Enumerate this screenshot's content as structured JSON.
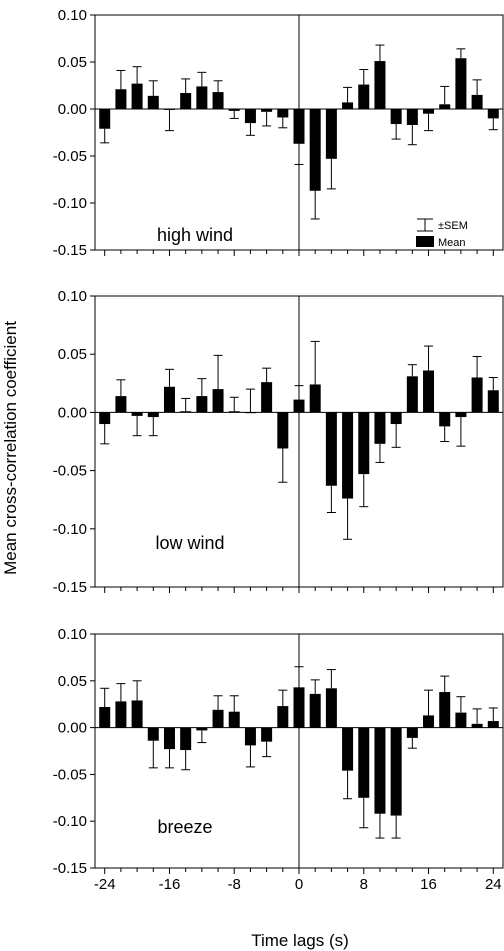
{
  "chart_data": {
    "type": "bar",
    "ylabel": "Mean cross-correlation coefficient",
    "xlabel": "Time lags (s)",
    "x": [
      -24,
      -22,
      -20,
      -18,
      -16,
      -14,
      -12,
      -10,
      -8,
      -6,
      -4,
      -2,
      0,
      2,
      4,
      6,
      8,
      10,
      12,
      14,
      16,
      18,
      20,
      22,
      24
    ],
    "xticks": [
      -24,
      -16,
      -8,
      0,
      8,
      16,
      24
    ],
    "xtick_labels": [
      "-24",
      "-16",
      "-8",
      "0",
      "8",
      "16",
      "24"
    ],
    "xlim": [
      -25.2,
      25.2
    ],
    "ylim": [
      -0.15,
      0.1
    ],
    "yticks": [
      0.1,
      0.05,
      0.0,
      -0.05,
      -0.1,
      -0.15
    ],
    "ytick_labels": [
      "0.10",
      "0.05",
      "0.00",
      "-0.05",
      "-0.10",
      "-0.15"
    ],
    "legend": {
      "placement": "right",
      "error_label": "±SEM",
      "mean_label": "Mean"
    },
    "panels": [
      {
        "label": "high wind",
        "values": [
          -0.021,
          0.021,
          0.027,
          0.014,
          -0.001,
          0.017,
          0.024,
          0.018,
          -0.002,
          -0.015,
          -0.003,
          -0.009,
          -0.037,
          -0.087,
          -0.053,
          0.007,
          0.026,
          0.051,
          -0.016,
          -0.017,
          -0.005,
          0.005,
          0.054,
          0.015,
          -0.01
        ],
        "errors": [
          0.015,
          0.02,
          0.018,
          0.016,
          0.022,
          0.015,
          0.015,
          0.012,
          0.008,
          0.013,
          0.015,
          0.011,
          0.022,
          0.03,
          0.032,
          0.016,
          0.016,
          0.017,
          0.016,
          0.021,
          0.018,
          0.019,
          0.01,
          0.016,
          0.012
        ]
      },
      {
        "label": "low wind",
        "values": [
          -0.01,
          0.014,
          -0.003,
          -0.004,
          0.022,
          0.001,
          0.014,
          0.02,
          0.001,
          0.0,
          0.026,
          -0.031,
          0.011,
          0.024,
          -0.063,
          -0.074,
          -0.053,
          -0.027,
          -0.01,
          0.031,
          0.036,
          -0.012,
          -0.004,
          0.03,
          0.019
        ],
        "errors": [
          0.017,
          0.014,
          0.017,
          0.016,
          0.015,
          0.011,
          0.015,
          0.029,
          0.012,
          0.02,
          0.012,
          0.029,
          0.012,
          0.037,
          0.023,
          0.035,
          0.028,
          0.016,
          0.02,
          0.01,
          0.021,
          0.013,
          0.025,
          0.018,
          0.011
        ]
      },
      {
        "label": "breeze",
        "values": [
          0.022,
          0.028,
          0.029,
          -0.014,
          -0.023,
          -0.024,
          -0.003,
          0.019,
          0.017,
          -0.019,
          -0.015,
          0.023,
          0.043,
          0.036,
          0.042,
          -0.046,
          -0.075,
          -0.092,
          -0.094,
          -0.011,
          0.013,
          0.038,
          0.016,
          0.004,
          0.007
        ],
        "errors": [
          0.02,
          0.019,
          0.021,
          0.029,
          0.02,
          0.021,
          0.013,
          0.015,
          0.017,
          0.023,
          0.016,
          0.017,
          0.022,
          0.015,
          0.02,
          0.03,
          0.032,
          0.026,
          0.024,
          0.011,
          0.027,
          0.017,
          0.017,
          0.016,
          0.014
        ]
      }
    ]
  }
}
